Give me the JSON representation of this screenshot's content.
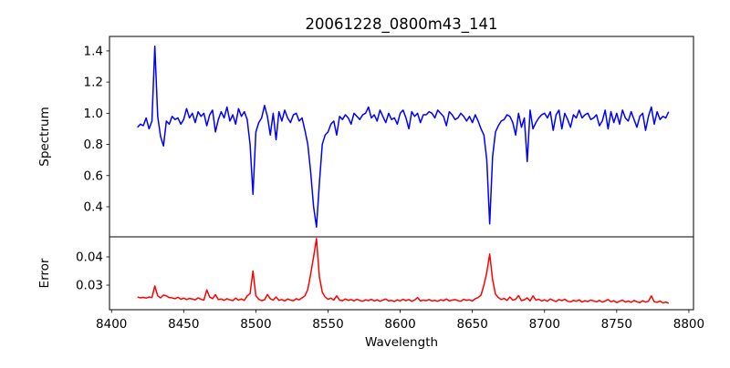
{
  "chart_data": {
    "type": "line",
    "title": "20061228_0800m43_141",
    "xlabel": "Wavelength",
    "xlim": [
      8398.6,
      8803.2
    ],
    "xticks": [
      8400,
      8450,
      8500,
      8550,
      8600,
      8650,
      8700,
      8750,
      8800
    ],
    "x_start": 8418,
    "x_step": 2,
    "panels": [
      {
        "ylabel": "Spectrum",
        "ylim": [
          0.207,
          1.493
        ],
        "yticks": [
          "0.4",
          "0.6",
          "0.8",
          "1.0",
          "1.2",
          "1.4"
        ],
        "series": {
          "name": "Spectrum",
          "color": "#0000ff",
          "values": [
            0.91,
            0.93,
            0.92,
            0.97,
            0.9,
            0.95,
            1.43,
            0.98,
            0.85,
            0.79,
            0.95,
            0.93,
            0.98,
            0.96,
            0.97,
            0.93,
            0.96,
            1.03,
            0.97,
            1.0,
            0.94,
            1.01,
            0.98,
            1.0,
            0.92,
            0.99,
            1.02,
            0.88,
            0.96,
            1.01,
            0.97,
            1.04,
            0.95,
            0.99,
            0.93,
            1.03,
            0.98,
            1.01,
            0.96,
            0.8,
            0.48,
            0.88,
            0.94,
            0.97,
            1.05,
            0.98,
            0.86,
            1.0,
            0.83,
            1.01,
            0.95,
            1.02,
            0.97,
            0.94,
            0.99,
            1.0,
            0.95,
            0.97,
            0.89,
            0.8,
            0.62,
            0.4,
            0.27,
            0.55,
            0.8,
            0.86,
            0.88,
            0.93,
            0.95,
            0.86,
            0.98,
            0.96,
            0.99,
            0.97,
            0.93,
            1.0,
            0.98,
            0.96,
            0.99,
            1.0,
            1.04,
            0.97,
            0.99,
            0.95,
            1.02,
            0.98,
            0.94,
            1.0,
            0.96,
            0.97,
            0.93,
            1.0,
            1.02,
            0.97,
            0.9,
            1.01,
            0.98,
            1.0,
            0.94,
            0.99,
            0.99,
            1.01,
            1.0,
            0.97,
            1.02,
            1.0,
            0.98,
            0.92,
            1.01,
            0.99,
            0.96,
            0.97,
            1.0,
            0.98,
            0.95,
            0.98,
            0.94,
            0.99,
            0.95,
            0.9,
            0.86,
            0.7,
            0.29,
            0.72,
            0.88,
            0.92,
            0.95,
            0.96,
            0.99,
            0.98,
            0.94,
            0.86,
            1.0,
            0.91,
            0.97,
            0.69,
            1.02,
            0.9,
            0.94,
            0.97,
            0.99,
            1.0,
            0.97,
            1.01,
            0.89,
            0.99,
            1.02,
            0.9,
            1.0,
            0.96,
            0.91,
            0.99,
            0.97,
            1.02,
            0.97,
            0.99,
            1.0,
            0.96,
            0.97,
            0.99,
            0.92,
            0.95,
            1.02,
            0.9,
            1.01,
            0.94,
            1.0,
            0.93,
            1.02,
            0.97,
            0.95,
            1.01,
            0.96,
            0.91,
            0.98,
            1.0,
            0.89,
            0.98,
            1.04,
            0.93,
            1.01,
            0.96,
            0.98,
            0.97,
            1.01
          ]
        }
      },
      {
        "ylabel": "Error",
        "ylim": [
          0.0213,
          0.0471
        ],
        "yticks": [
          "0.03",
          "0.04"
        ],
        "series": {
          "name": "Error",
          "color": "#ff0000",
          "values": [
            0.0258,
            0.0255,
            0.0257,
            0.0254,
            0.0258,
            0.0256,
            0.0297,
            0.0262,
            0.0255,
            0.0265,
            0.0262,
            0.0256,
            0.0255,
            0.0252,
            0.0257,
            0.025,
            0.0254,
            0.0249,
            0.0253,
            0.0251,
            0.0248,
            0.0255,
            0.025,
            0.0247,
            0.0283,
            0.0258,
            0.0252,
            0.0266,
            0.0249,
            0.0251,
            0.0246,
            0.0252,
            0.0248,
            0.0245,
            0.0254,
            0.0247,
            0.0251,
            0.0246,
            0.0262,
            0.027,
            0.035,
            0.0262,
            0.025,
            0.0245,
            0.0248,
            0.0267,
            0.0252,
            0.0247,
            0.0258,
            0.0246,
            0.0249,
            0.0244,
            0.0251,
            0.0247,
            0.0245,
            0.0252,
            0.0248,
            0.0255,
            0.0262,
            0.0285,
            0.034,
            0.04,
            0.0465,
            0.033,
            0.0275,
            0.0258,
            0.025,
            0.0254,
            0.0247,
            0.0262,
            0.0247,
            0.0245,
            0.0251,
            0.0246,
            0.0249,
            0.0244,
            0.025,
            0.0246,
            0.0243,
            0.0248,
            0.0245,
            0.025,
            0.0244,
            0.0248,
            0.0243,
            0.0247,
            0.0251,
            0.0244,
            0.0246,
            0.0242,
            0.0248,
            0.0244,
            0.025,
            0.0245,
            0.0249,
            0.0243,
            0.0247,
            0.0256,
            0.0244,
            0.0247,
            0.0245,
            0.0249,
            0.0244,
            0.0246,
            0.0243,
            0.0248,
            0.0245,
            0.0251,
            0.0244,
            0.0247,
            0.0249,
            0.0245,
            0.0243,
            0.025,
            0.0246,
            0.0248,
            0.0244,
            0.0252,
            0.0256,
            0.0265,
            0.03,
            0.0345,
            0.041,
            0.032,
            0.0268,
            0.0256,
            0.0249,
            0.0253,
            0.0246,
            0.0258,
            0.0247,
            0.025,
            0.0263,
            0.0245,
            0.0248,
            0.0255,
            0.0244,
            0.0262,
            0.0247,
            0.025,
            0.0244,
            0.0248,
            0.0243,
            0.0251,
            0.0246,
            0.0242,
            0.0249,
            0.0245,
            0.025,
            0.0243,
            0.0241,
            0.0246,
            0.0243,
            0.0248,
            0.024,
            0.0245,
            0.0242,
            0.0247,
            0.0244,
            0.0241,
            0.0246,
            0.024,
            0.0244,
            0.0249,
            0.0241,
            0.0245,
            0.0238,
            0.0243,
            0.0247,
            0.024,
            0.0244,
            0.0239,
            0.0246,
            0.0241,
            0.0238,
            0.0245,
            0.024,
            0.0243,
            0.0262,
            0.0241,
            0.0239,
            0.0244,
            0.0237,
            0.024,
            0.0236
          ]
        }
      }
    ]
  }
}
